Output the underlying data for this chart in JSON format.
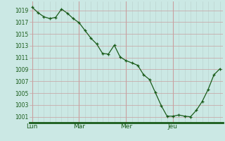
{
  "background_color": "#cbe8e4",
  "grid_color_major": "#c8a0a0",
  "grid_color_minor": "#b8d0cc",
  "line_color": "#1a5c1a",
  "marker_color": "#1a5c1a",
  "x_labels": [
    "Lun",
    "Mar",
    "Mer",
    "Jeu"
  ],
  "ylim": [
    1000,
    1020.5
  ],
  "yticks": [
    1001,
    1003,
    1005,
    1007,
    1009,
    1011,
    1013,
    1015,
    1017,
    1019
  ],
  "num_points": 33,
  "day_boundaries": [
    0,
    8,
    16,
    24
  ],
  "y_values": [
    1019.5,
    1018.6,
    1017.9,
    1017.6,
    1017.8,
    1019.2,
    1018.5,
    1017.6,
    1016.9,
    1015.6,
    1014.3,
    1013.3,
    1011.7,
    1011.6,
    1013.1,
    1011.1,
    1010.5,
    1010.1,
    1009.7,
    1008.1,
    1007.3,
    1005.1,
    1002.9,
    1001.1,
    1001.1,
    1001.3,
    1001.1,
    1001.0,
    1002.1,
    1003.6,
    1005.6,
    1008.1,
    1009.1
  ]
}
